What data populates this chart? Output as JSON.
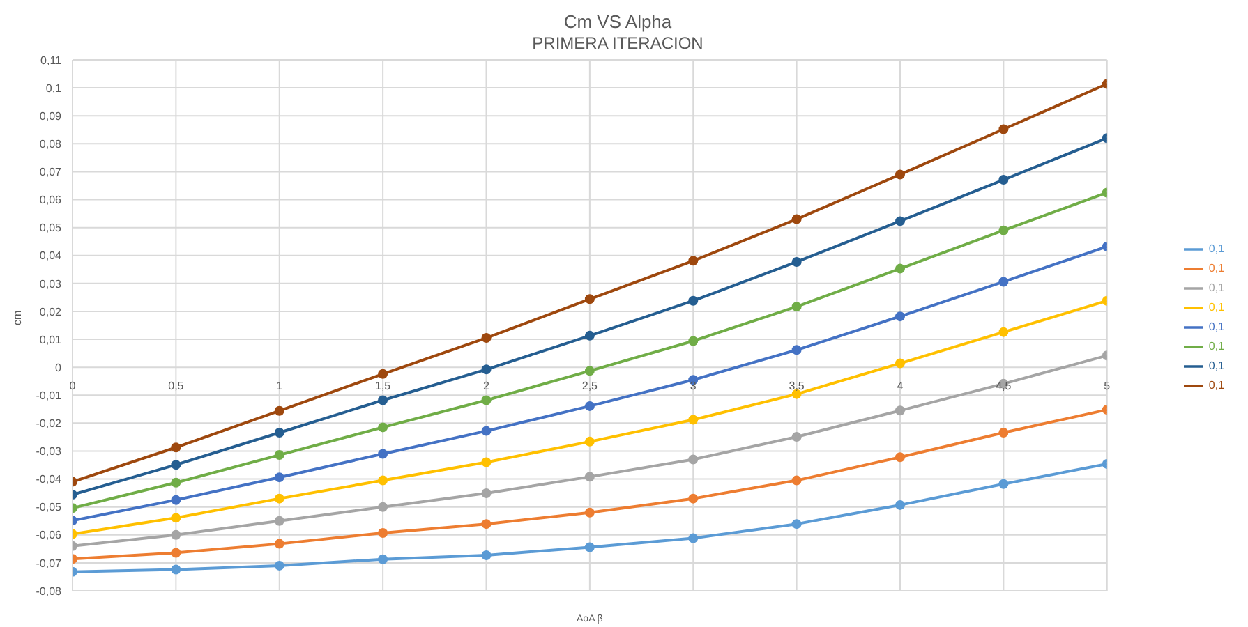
{
  "chart_data": {
    "type": "line",
    "title": "Cm VS Alpha",
    "subtitle": "PRIMERA ITERACION",
    "xlabel": "AoA β",
    "ylabel": "cm",
    "x": [
      0,
      0.5,
      1,
      1.5,
      2,
      2.5,
      3,
      3.5,
      4,
      4.5,
      5
    ],
    "series": [
      {
        "name": "0,1",
        "color": "#5b9bd5",
        "values": [
          -0.0732,
          -0.0724,
          -0.071,
          -0.0687,
          -0.0673,
          -0.0644,
          -0.0612,
          -0.0561,
          -0.0493,
          -0.0418,
          -0.0346
        ]
      },
      {
        "name": "0,1",
        "color": "#ed7d31",
        "values": [
          -0.0686,
          -0.0664,
          -0.0632,
          -0.0593,
          -0.0561,
          -0.052,
          -0.047,
          -0.0405,
          -0.0322,
          -0.0234,
          -0.0152
        ]
      },
      {
        "name": "0,1",
        "color": "#a5a5a5",
        "values": [
          -0.064,
          -0.06,
          -0.055,
          -0.05,
          -0.0451,
          -0.0392,
          -0.033,
          -0.0249,
          -0.0155,
          -0.0059,
          0.0042
        ]
      },
      {
        "name": "0,1",
        "color": "#ffc000",
        "values": [
          -0.0597,
          -0.0539,
          -0.047,
          -0.0405,
          -0.034,
          -0.0266,
          -0.0188,
          -0.0096,
          0.0014,
          0.0126,
          0.0238
        ]
      },
      {
        "name": "0,1",
        "color": "#4472c4",
        "values": [
          -0.0549,
          -0.0475,
          -0.0394,
          -0.031,
          -0.0228,
          -0.0139,
          -0.0045,
          0.0062,
          0.0182,
          0.0306,
          0.0432
        ]
      },
      {
        "name": "0,1",
        "color": "#70ad47",
        "values": [
          -0.0504,
          -0.0413,
          -0.0314,
          -0.0215,
          -0.0118,
          -0.0013,
          0.0094,
          0.0217,
          0.0353,
          0.049,
          0.0625
        ]
      },
      {
        "name": "0,1",
        "color": "#255e91",
        "values": [
          -0.0456,
          -0.0349,
          -0.0234,
          -0.0118,
          -0.0008,
          0.0113,
          0.0238,
          0.0377,
          0.0523,
          0.0671,
          0.082
        ]
      },
      {
        "name": "0,1",
        "color": "#9e480e",
        "values": [
          -0.041,
          -0.0287,
          -0.0156,
          -0.0024,
          0.0105,
          0.0244,
          0.0381,
          0.053,
          0.069,
          0.0852,
          0.1014
        ]
      }
    ],
    "xlim": [
      0,
      5
    ],
    "xticks": [
      0,
      {
        "value": 0.5,
        "label": "0,5"
      },
      1,
      {
        "value": 1.5,
        "label": "1,5"
      },
      2,
      {
        "value": 2.5,
        "label": "2,5"
      },
      3,
      {
        "value": 3.5,
        "label": "3,5"
      },
      4,
      {
        "value": 4.5,
        "label": "4,5"
      },
      5
    ],
    "ylim": [
      -0.08,
      0.11
    ],
    "yticks": [
      {
        "value": -0.08,
        "label": "-0,08"
      },
      {
        "value": -0.07,
        "label": "-0,07"
      },
      {
        "value": -0.06,
        "label": "-0,06"
      },
      {
        "value": -0.05,
        "label": "-0,05"
      },
      {
        "value": -0.04,
        "label": "-0,04"
      },
      {
        "value": -0.03,
        "label": "-0,03"
      },
      {
        "value": -0.02,
        "label": "-0,02"
      },
      {
        "value": -0.01,
        "label": "-0,01"
      },
      0,
      {
        "value": 0.01,
        "label": "0,01"
      },
      {
        "value": 0.02,
        "label": "0,02"
      },
      {
        "value": 0.03,
        "label": "0,03"
      },
      {
        "value": 0.04,
        "label": "0,04"
      },
      {
        "value": 0.05,
        "label": "0,05"
      },
      {
        "value": 0.06,
        "label": "0,06"
      },
      {
        "value": 0.07,
        "label": "0,07"
      },
      {
        "value": 0.08,
        "label": "0,08"
      },
      {
        "value": 0.09,
        "label": "0,09"
      },
      {
        "value": 0.1,
        "label": "0,1"
      },
      {
        "value": 0.11,
        "label": "0,11"
      }
    ],
    "grid": true,
    "legend": "right",
    "marker": "circle",
    "line_style": "solid"
  }
}
